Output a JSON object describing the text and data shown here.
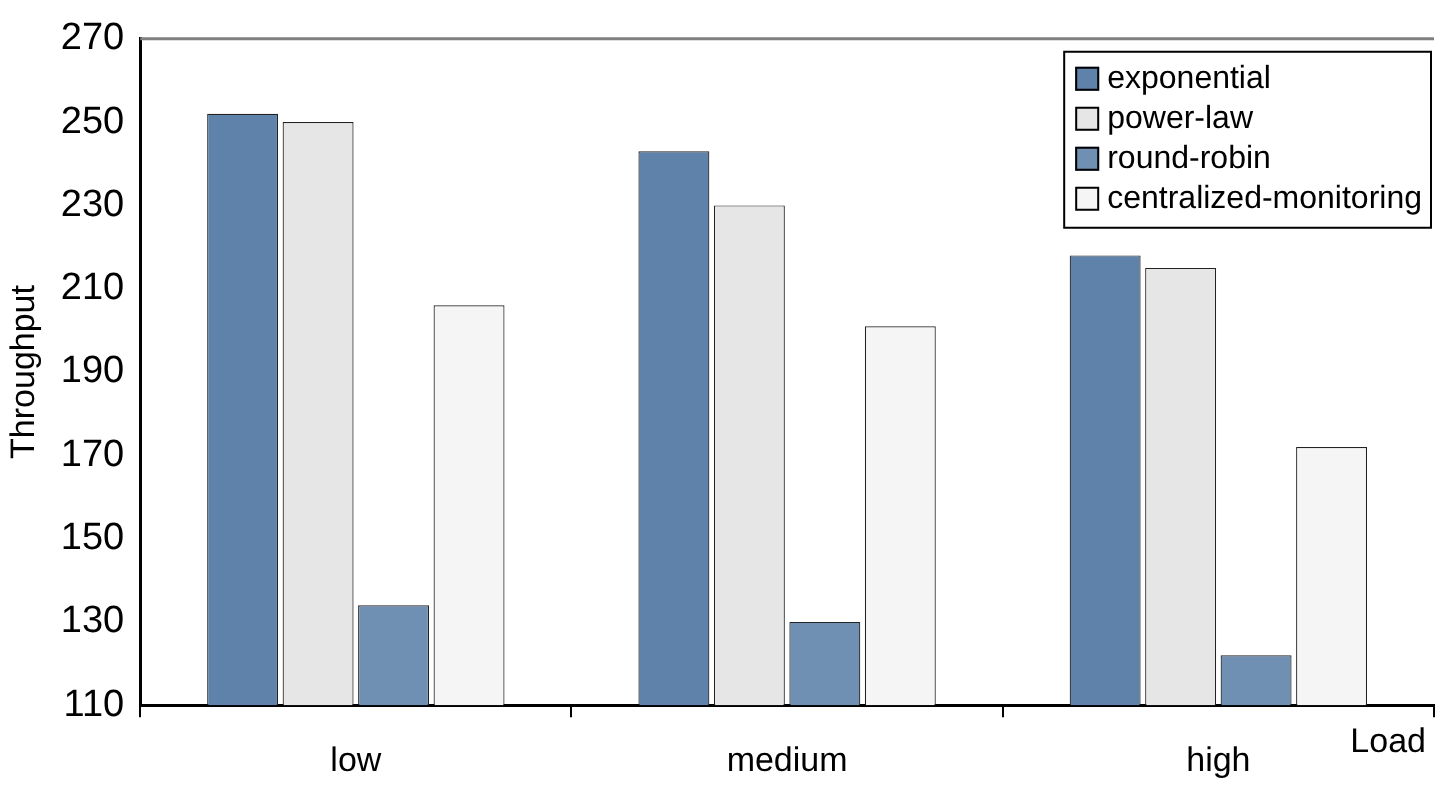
{
  "chart_data": {
    "type": "bar",
    "xlabel": "Load",
    "ylabel": "Throughput",
    "categories": [
      "low",
      "medium",
      "high"
    ],
    "series": [
      {
        "name": "exponential",
        "color": "#5f82ab",
        "values": [
          252,
          243,
          218
        ]
      },
      {
        "name": "power-law",
        "color": "#e6e6e6",
        "values": [
          250,
          230,
          215
        ]
      },
      {
        "name": "round-robin",
        "color": "#6f8fb3",
        "values": [
          134,
          130,
          122
        ]
      },
      {
        "name": "centralized-monitoring",
        "color": "#f5f5f5",
        "values": [
          206,
          201,
          172
        ]
      }
    ],
    "ylim": [
      110,
      270
    ],
    "yticks": [
      110,
      130,
      150,
      170,
      190,
      210,
      230,
      250,
      270
    ],
    "grid": false,
    "legend": "top right"
  }
}
